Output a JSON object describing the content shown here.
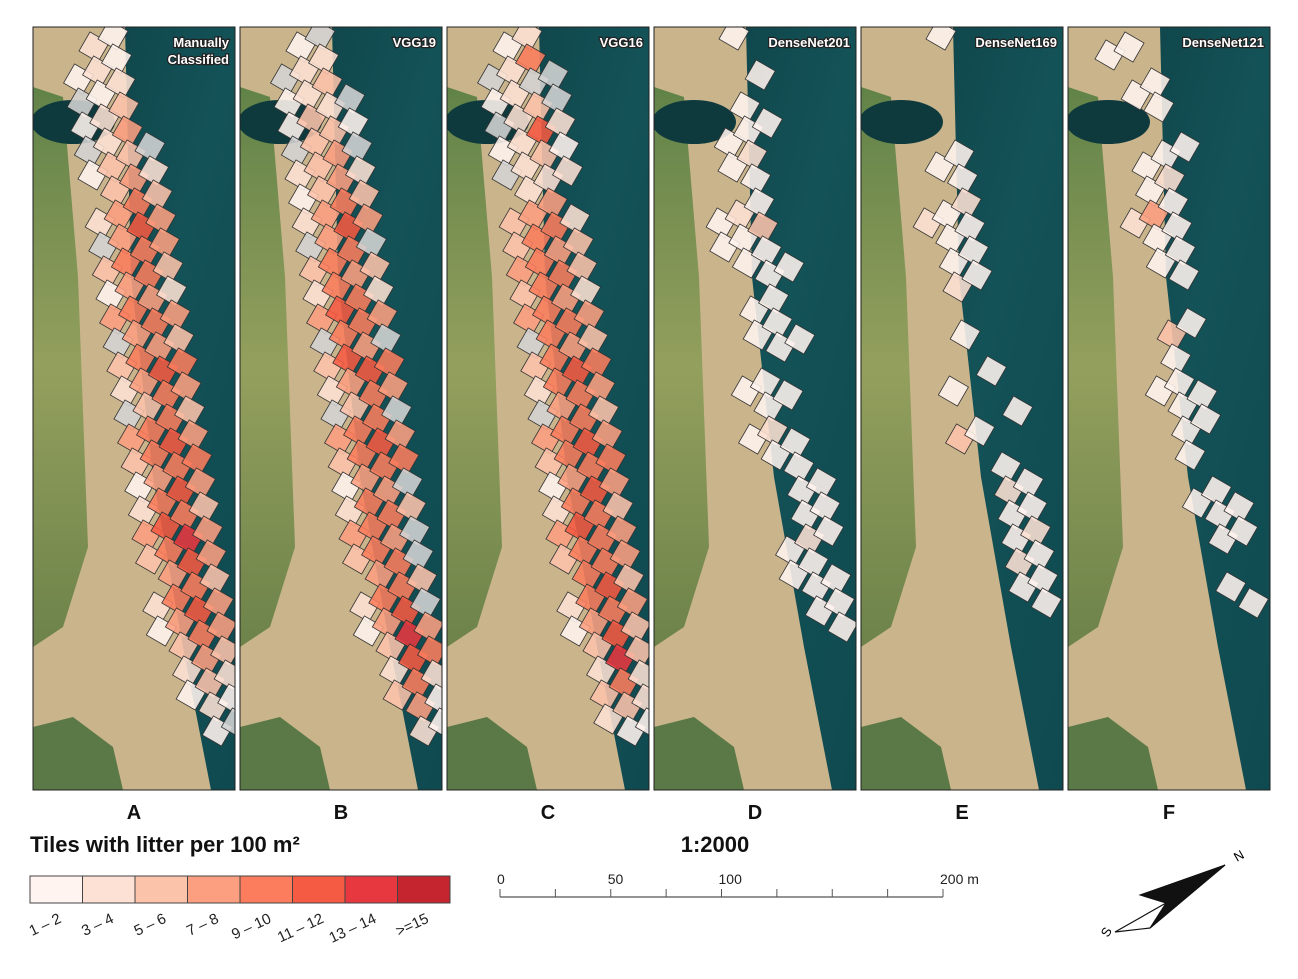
{
  "panels": [
    {
      "letter": "A",
      "title_lines": [
        "Manually",
        "Classified"
      ],
      "tiles": [
        [
          null,
          2,
          1,
          null
        ],
        [
          1,
          2,
          1,
          null
        ],
        [
          0,
          1,
          2,
          null
        ],
        [
          1,
          2,
          3,
          null
        ],
        [
          0,
          2,
          4,
          null
        ],
        [
          1,
          3,
          3,
          0
        ],
        [
          null,
          3,
          4,
          2
        ],
        [
          2,
          4,
          5,
          3
        ],
        [
          0,
          4,
          6,
          4
        ],
        [
          3,
          5,
          5,
          4
        ],
        [
          1,
          4,
          5,
          3
        ],
        [
          4,
          5,
          4,
          2
        ],
        [
          0,
          4,
          5,
          4
        ],
        [
          3,
          5,
          4,
          3
        ],
        [
          2,
          4,
          6,
          5
        ],
        [
          0,
          3,
          5,
          4
        ],
        [
          4,
          5,
          5,
          3
        ],
        [
          3,
          5,
          6,
          4
        ],
        [
          1,
          4,
          5,
          5
        ],
        [
          2,
          5,
          6,
          4
        ],
        [
          4,
          6,
          5,
          3
        ],
        [
          3,
          5,
          7,
          4
        ],
        [
          null,
          4,
          6,
          4
        ],
        [
          2,
          5,
          5,
          3
        ],
        [
          1,
          4,
          6,
          4
        ],
        [
          null,
          3,
          5,
          4
        ],
        [
          null,
          2,
          4,
          3
        ],
        [
          null,
          1,
          3,
          2
        ],
        [
          null,
          null,
          2,
          1
        ],
        [
          null,
          null,
          1,
          0
        ]
      ]
    },
    {
      "letter": "B",
      "title_lines": [
        "VGG19"
      ],
      "tiles": [
        [
          null,
          1,
          0,
          null
        ],
        [
          0,
          2,
          2,
          null
        ],
        [
          1,
          2,
          3,
          null
        ],
        [
          1,
          3,
          2,
          0
        ],
        [
          0,
          3,
          3,
          1
        ],
        [
          2,
          3,
          4,
          0
        ],
        [
          1,
          3,
          4,
          2
        ],
        [
          2,
          4,
          5,
          3
        ],
        [
          0,
          4,
          6,
          4
        ],
        [
          3,
          5,
          5,
          0
        ],
        [
          2,
          5,
          4,
          3
        ],
        [
          4,
          6,
          5,
          2
        ],
        [
          0,
          5,
          5,
          4
        ],
        [
          3,
          6,
          4,
          0
        ],
        [
          2,
          4,
          6,
          5
        ],
        [
          0,
          3,
          5,
          4
        ],
        [
          4,
          5,
          5,
          0
        ],
        [
          3,
          5,
          6,
          4
        ],
        [
          1,
          4,
          5,
          5
        ],
        [
          2,
          5,
          4,
          0
        ],
        [
          4,
          5,
          5,
          3
        ],
        [
          3,
          5,
          4,
          0
        ],
        [
          null,
          4,
          5,
          0
        ],
        [
          2,
          5,
          5,
          3
        ],
        [
          1,
          4,
          6,
          0
        ],
        [
          null,
          3,
          7,
          4
        ],
        [
          null,
          2,
          6,
          5
        ],
        [
          null,
          3,
          5,
          2
        ],
        [
          null,
          null,
          4,
          1
        ],
        [
          null,
          null,
          2,
          1
        ]
      ]
    },
    {
      "letter": "C",
      "title_lines": [
        "VGG16"
      ],
      "tiles": [
        [
          null,
          1,
          2,
          null
        ],
        [
          0,
          2,
          5,
          null
        ],
        [
          1,
          2,
          0,
          0
        ],
        [
          0,
          2,
          3,
          0
        ],
        [
          1,
          2,
          6,
          2
        ],
        [
          0,
          2,
          3,
          1
        ],
        [
          null,
          2,
          2,
          2
        ],
        [
          3,
          4,
          4,
          null
        ],
        [
          3,
          5,
          5,
          2
        ],
        [
          4,
          5,
          4,
          3
        ],
        [
          3,
          5,
          5,
          3
        ],
        [
          4,
          5,
          4,
          2
        ],
        [
          0,
          5,
          5,
          4
        ],
        [
          3,
          5,
          4,
          3
        ],
        [
          2,
          5,
          6,
          5
        ],
        [
          0,
          4,
          5,
          4
        ],
        [
          4,
          5,
          5,
          3
        ],
        [
          3,
          5,
          6,
          4
        ],
        [
          1,
          4,
          5,
          5
        ],
        [
          2,
          5,
          6,
          4
        ],
        [
          4,
          6,
          5,
          3
        ],
        [
          3,
          5,
          5,
          4
        ],
        [
          null,
          5,
          5,
          4
        ],
        [
          2,
          5,
          6,
          3
        ],
        [
          1,
          4,
          5,
          4
        ],
        [
          null,
          3,
          6,
          3
        ],
        [
          null,
          2,
          7,
          3
        ],
        [
          null,
          3,
          5,
          2
        ],
        [
          null,
          2,
          3,
          2
        ],
        [
          null,
          null,
          1,
          1
        ]
      ]
    },
    {
      "letter": "D",
      "title_lines": [
        "DenseNet201"
      ],
      "tiles": [
        [
          null,
          null,
          1,
          null
        ],
        [
          null,
          null,
          null,
          null
        ],
        [
          null,
          null,
          null,
          1
        ],
        [
          null,
          null,
          1,
          null
        ],
        [
          null,
          1,
          1,
          1
        ],
        [
          null,
          1,
          2,
          null
        ],
        [
          null,
          null,
          1,
          null
        ],
        [
          1,
          2,
          1,
          null
        ],
        [
          1,
          1,
          3,
          null
        ],
        [
          null,
          1,
          1,
          null
        ],
        [
          null,
          null,
          1,
          1
        ],
        [
          null,
          1,
          1,
          null
        ],
        [
          null,
          1,
          1,
          null
        ],
        [
          null,
          null,
          1,
          1
        ],
        [
          1,
          1,
          null,
          null
        ],
        [
          null,
          1,
          1,
          null
        ],
        [
          1,
          2,
          null,
          null
        ],
        [
          null,
          1,
          1,
          null
        ],
        [
          null,
          null,
          1,
          null
        ],
        [
          null,
          null,
          1,
          1
        ],
        [
          null,
          null,
          1,
          1
        ],
        [
          null,
          1,
          2,
          1
        ],
        [
          null,
          1,
          1,
          null
        ],
        [
          null,
          null,
          1,
          1
        ],
        [
          null,
          null,
          1,
          1
        ],
        [
          null,
          null,
          null,
          1
        ],
        [
          null,
          null,
          null,
          null
        ],
        [
          null,
          null,
          null,
          null
        ],
        [
          null,
          null,
          null,
          null
        ],
        [
          null,
          null,
          null,
          null
        ]
      ]
    },
    {
      "letter": "E",
      "title_lines": [
        "DenseNet169"
      ],
      "tiles": [
        [
          null,
          null,
          1,
          null
        ],
        [
          null,
          null,
          null,
          null
        ],
        [
          null,
          null,
          null,
          null
        ],
        [
          null,
          null,
          null,
          null
        ],
        [
          null,
          null,
          null,
          null
        ],
        [
          null,
          1,
          1,
          null
        ],
        [
          null,
          null,
          1,
          null
        ],
        [
          2,
          1,
          2,
          null
        ],
        [
          null,
          1,
          1,
          null
        ],
        [
          null,
          1,
          1,
          null
        ],
        [
          null,
          2,
          1,
          null
        ],
        [
          null,
          null,
          null,
          null
        ],
        [
          null,
          1,
          null,
          null
        ],
        [
          null,
          null,
          null,
          null
        ],
        [
          1,
          null,
          1,
          null
        ],
        [
          null,
          null,
          null,
          null
        ],
        [
          3,
          1,
          null,
          1
        ],
        [
          null,
          null,
          null,
          null
        ],
        [
          null,
          null,
          1,
          null
        ],
        [
          null,
          null,
          2,
          1
        ],
        [
          null,
          null,
          1,
          1
        ],
        [
          null,
          null,
          1,
          2
        ],
        [
          null,
          null,
          2,
          1
        ],
        [
          null,
          null,
          1,
          1
        ],
        [
          null,
          null,
          null,
          1
        ],
        [
          null,
          null,
          null,
          null
        ],
        [
          null,
          null,
          null,
          null
        ],
        [
          null,
          null,
          null,
          null
        ],
        [
          null,
          null,
          null,
          null
        ],
        [
          null,
          null,
          null,
          null
        ]
      ]
    },
    {
      "letter": "F",
      "title_lines": [
        "DenseNet121"
      ],
      "tiles": [
        [
          1,
          1,
          null,
          null
        ],
        [
          null,
          null,
          null,
          null
        ],
        [
          null,
          1,
          1,
          null
        ],
        [
          null,
          null,
          1,
          null
        ],
        [
          null,
          null,
          null,
          null
        ],
        [
          null,
          1,
          1,
          1
        ],
        [
          null,
          1,
          2,
          null
        ],
        [
          2,
          4,
          1,
          null
        ],
        [
          null,
          1,
          1,
          null
        ],
        [
          null,
          1,
          1,
          null
        ],
        [
          null,
          null,
          1,
          null
        ],
        [
          null,
          null,
          null,
          null
        ],
        [
          null,
          3,
          1,
          null
        ],
        [
          null,
          1,
          null,
          null
        ],
        [
          1,
          1,
          null,
          null
        ],
        [
          null,
          1,
          1,
          null
        ],
        [
          null,
          1,
          1,
          null
        ],
        [
          null,
          1,
          null,
          null
        ],
        [
          null,
          null,
          null,
          null
        ],
        [
          null,
          1,
          1,
          null
        ],
        [
          null,
          null,
          1,
          1
        ],
        [
          null,
          null,
          1,
          1
        ],
        [
          null,
          null,
          null,
          null
        ],
        [
          null,
          null,
          1,
          null
        ],
        [
          null,
          null,
          null,
          1
        ],
        [
          null,
          null,
          null,
          null
        ],
        [
          null,
          null,
          null,
          null
        ],
        [
          null,
          null,
          null,
          null
        ],
        [
          null,
          null,
          null,
          null
        ],
        [
          null,
          null,
          null,
          null
        ]
      ]
    }
  ],
  "legend": {
    "title": "Tiles with litter per 100 m²",
    "classes": [
      "1 – 2",
      "3 – 4",
      "5 – 6",
      "7 – 8",
      "9 – 10",
      "11 – 12",
      "13 – 14",
      ">=15"
    ],
    "colors": [
      "#fff4ef",
      "#fde1d4",
      "#fcc3ab",
      "#fc9f81",
      "#fb7d5d",
      "#f55a42",
      "#e8383f",
      "#c5252e"
    ],
    "empty_color": "#d4d4d4"
  },
  "scale": {
    "ratio": "1:2000",
    "ticks": [
      {
        "value": 0,
        "label": "0"
      },
      50,
      {
        "value": 100,
        "label": "100"
      },
      {
        "value": 200,
        "label": "200 m"
      }
    ],
    "minor_ticks": [
      25,
      75,
      125,
      150,
      175
    ],
    "max": 200
  },
  "north": {
    "n": "N",
    "s": "S"
  }
}
